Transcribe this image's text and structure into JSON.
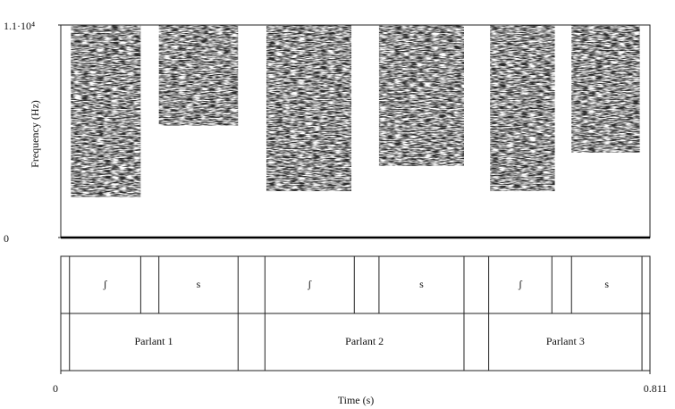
{
  "chart_data": {
    "type": "spectrogram",
    "xlabel": "Time (s)",
    "ylabel": "Frequency (Hz)",
    "xlim": [
      0,
      0.811
    ],
    "ylim": [
      0,
      11000
    ],
    "xticks": [
      0,
      0.811
    ],
    "yticks": [
      0,
      {
        "value": 11000,
        "label": "1.1·10⁴"
      }
    ],
    "energy": [
      {
        "start": 0.014,
        "end": 0.11,
        "fmin": 2100,
        "fmax": 11000
      },
      {
        "start": 0.135,
        "end": 0.244,
        "fmin": 5800,
        "fmax": 11000
      },
      {
        "start": 0.283,
        "end": 0.4,
        "fmin": 2400,
        "fmax": 11000
      },
      {
        "start": 0.438,
        "end": 0.555,
        "fmin": 3700,
        "fmax": 11000
      },
      {
        "start": 0.591,
        "end": 0.68,
        "fmin": 2400,
        "fmax": 11000
      },
      {
        "start": 0.703,
        "end": 0.797,
        "fmin": 4400,
        "fmax": 11000
      }
    ],
    "tiers": [
      {
        "intervals": [
          {
            "start": 0.012,
            "end": 0.11,
            "label": "ʃ"
          },
          {
            "start": 0.135,
            "end": 0.244,
            "label": "s"
          },
          {
            "start": 0.281,
            "end": 0.404,
            "label": "ʃ"
          },
          {
            "start": 0.438,
            "end": 0.555,
            "label": "s"
          },
          {
            "start": 0.589,
            "end": 0.676,
            "label": "ʃ"
          },
          {
            "start": 0.703,
            "end": 0.8,
            "label": "s"
          }
        ]
      },
      {
        "intervals": [
          {
            "start": 0.012,
            "end": 0.244,
            "label": "Parlant 1"
          },
          {
            "start": 0.281,
            "end": 0.555,
            "label": "Parlant 2"
          },
          {
            "start": 0.589,
            "end": 0.8,
            "label": "Parlant 3"
          }
        ]
      }
    ]
  }
}
